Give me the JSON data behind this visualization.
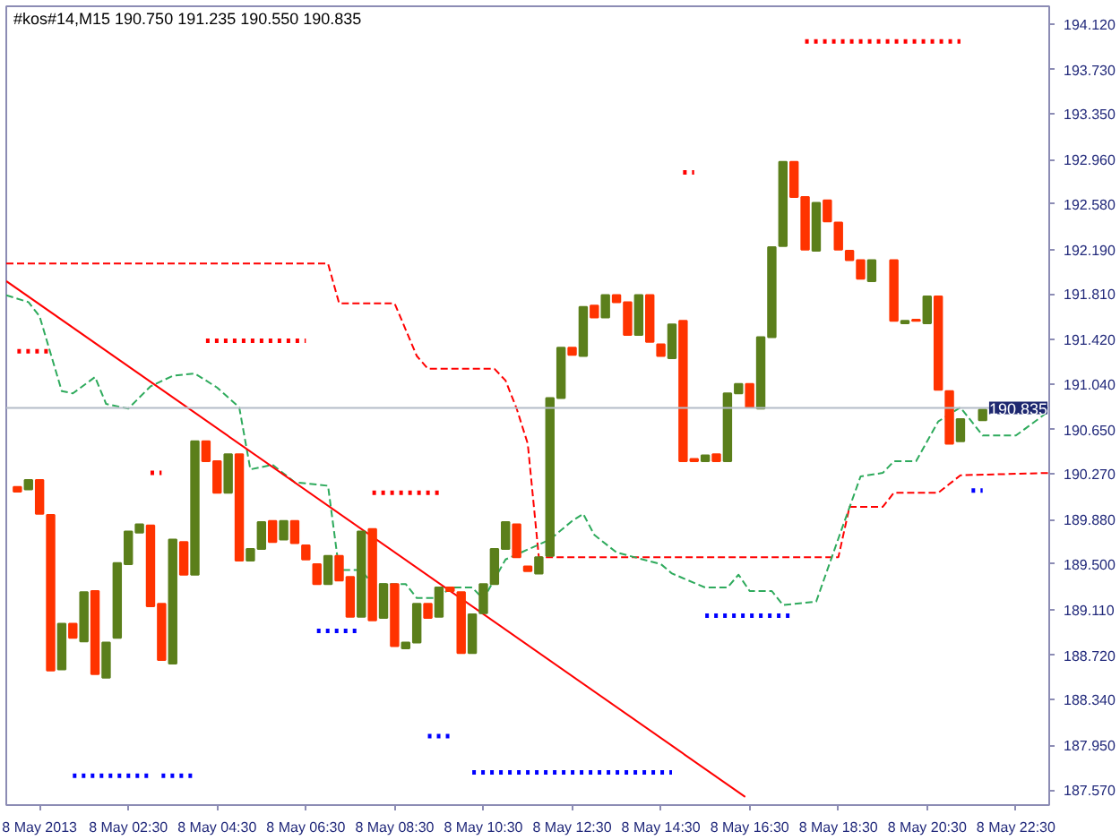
{
  "chart_data": {
    "type": "candlestick",
    "title": "#kos#14,M15  190.750 191.235 190.550 190.835",
    "x": [
      "2013-05-08T00:00",
      "2013-05-08T00:15",
      "2013-05-08T00:30",
      "2013-05-08T00:45",
      "2013-05-08T01:00",
      "2013-05-08T01:15",
      "2013-05-08T01:30",
      "2013-05-08T01:45",
      "2013-05-08T02:00",
      "2013-05-08T02:15",
      "2013-05-08T02:30",
      "2013-05-08T02:45",
      "2013-05-08T03:00",
      "2013-05-08T03:15",
      "2013-05-08T03:30",
      "2013-05-08T03:45",
      "2013-05-08T04:00",
      "2013-05-08T04:15",
      "2013-05-08T04:30",
      "2013-05-08T04:45",
      "2013-05-08T05:00",
      "2013-05-08T05:15",
      "2013-05-08T05:30",
      "2013-05-08T05:45",
      "2013-05-08T06:00",
      "2013-05-08T06:15",
      "2013-05-08T06:30",
      "2013-05-08T06:45",
      "2013-05-08T07:00",
      "2013-05-08T07:15",
      "2013-05-08T07:30",
      "2013-05-08T07:45",
      "2013-05-08T08:00",
      "2013-05-08T08:15",
      "2013-05-08T08:30",
      "2013-05-08T08:45",
      "2013-05-08T09:00",
      "2013-05-08T09:15",
      "2013-05-08T09:30",
      "2013-05-08T09:45",
      "2013-05-08T10:00",
      "2013-05-08T10:15",
      "2013-05-08T10:30",
      "2013-05-08T10:45",
      "2013-05-08T11:00",
      "2013-05-08T11:15",
      "2013-05-08T11:30",
      "2013-05-08T11:45",
      "2013-05-08T12:00",
      "2013-05-08T12:15",
      "2013-05-08T12:30",
      "2013-05-08T12:45",
      "2013-05-08T13:00",
      "2013-05-08T13:15",
      "2013-05-08T13:30",
      "2013-05-08T13:45",
      "2013-05-08T14:00",
      "2013-05-08T14:15",
      "2013-05-08T14:30",
      "2013-05-08T14:45",
      "2013-05-08T15:00",
      "2013-05-08T15:15",
      "2013-05-08T15:30",
      "2013-05-08T15:45",
      "2013-05-08T16:00",
      "2013-05-08T16:15",
      "2013-05-08T16:30",
      "2013-05-08T16:45",
      "2013-05-08T17:00",
      "2013-05-08T17:15",
      "2013-05-08T17:30",
      "2013-05-08T17:45",
      "2013-05-08T18:00",
      "2013-05-08T18:15",
      "2013-05-08T18:30",
      "2013-05-08T18:45",
      "2013-05-08T19:00",
      "2013-05-08T19:15",
      "2013-05-08T19:45",
      "2013-05-08T20:00",
      "2013-05-08T20:15",
      "2013-05-08T20:30",
      "2013-05-08T20:45",
      "2013-05-08T21:00",
      "2013-05-08T21:15",
      "2013-05-08T21:45"
    ],
    "ohlc": [
      [
        190.16,
        190.16,
        190.12,
        190.12
      ],
      [
        190.14,
        190.22,
        190.14,
        190.22
      ],
      [
        190.22,
        190.22,
        189.93,
        189.93
      ],
      [
        189.92,
        189.92,
        188.59,
        188.59
      ],
      [
        188.6,
        188.99,
        188.6,
        188.99
      ],
      [
        188.99,
        188.99,
        188.87,
        188.87
      ],
      [
        188.84,
        189.26,
        188.84,
        189.26
      ],
      [
        189.27,
        189.27,
        188.56,
        188.56
      ],
      [
        188.53,
        188.83,
        188.53,
        188.83
      ],
      [
        188.87,
        189.51,
        188.87,
        189.51
      ],
      [
        189.5,
        189.78,
        189.5,
        189.78
      ],
      [
        189.77,
        189.84,
        189.77,
        189.84
      ],
      [
        189.83,
        189.83,
        189.14,
        189.14
      ],
      [
        189.16,
        189.16,
        188.68,
        188.68
      ],
      [
        188.65,
        189.71,
        188.65,
        189.71
      ],
      [
        189.69,
        189.69,
        189.41,
        189.41
      ],
      [
        189.41,
        190.55,
        189.41,
        190.55
      ],
      [
        190.55,
        190.55,
        190.38,
        190.38
      ],
      [
        190.38,
        190.38,
        190.11,
        190.11
      ],
      [
        190.11,
        190.44,
        190.11,
        190.44
      ],
      [
        190.44,
        190.44,
        189.53,
        189.53
      ],
      [
        189.53,
        189.63,
        189.53,
        189.63
      ],
      [
        189.63,
        189.86,
        189.63,
        189.86
      ],
      [
        189.87,
        189.87,
        189.69,
        189.69
      ],
      [
        189.71,
        189.87,
        189.71,
        189.87
      ],
      [
        189.87,
        189.87,
        189.68,
        189.68
      ],
      [
        189.66,
        189.66,
        189.54,
        189.54
      ],
      [
        189.5,
        189.5,
        189.33,
        189.33
      ],
      [
        189.33,
        189.57,
        189.33,
        189.57
      ],
      [
        189.57,
        189.57,
        189.36,
        189.36
      ],
      [
        189.39,
        189.39,
        189.05,
        189.05
      ],
      [
        189.05,
        189.78,
        189.05,
        189.78
      ],
      [
        189.8,
        189.8,
        189.02,
        189.02
      ],
      [
        189.04,
        189.33,
        189.04,
        189.33
      ],
      [
        189.33,
        189.33,
        188.8,
        188.8
      ],
      [
        188.78,
        188.83,
        188.78,
        188.83
      ],
      [
        188.83,
        189.16,
        188.83,
        189.16
      ],
      [
        189.16,
        189.16,
        189.04,
        189.04
      ],
      [
        189.05,
        189.3,
        189.05,
        189.3
      ],
      [
        189.3,
        189.3,
        189.27,
        189.27
      ],
      [
        189.26,
        189.26,
        188.74,
        188.74
      ],
      [
        188.74,
        189.07,
        188.74,
        189.07
      ],
      [
        189.08,
        189.33,
        189.08,
        189.33
      ],
      [
        189.33,
        189.63,
        189.33,
        189.63
      ],
      [
        189.63,
        189.86,
        189.63,
        189.86
      ],
      [
        189.84,
        189.84,
        189.56,
        189.56
      ],
      [
        189.48,
        189.48,
        189.44,
        189.44
      ],
      [
        189.42,
        189.56,
        189.42,
        189.56
      ],
      [
        189.57,
        190.92,
        189.57,
        190.92
      ],
      [
        190.92,
        191.35,
        190.92,
        191.35
      ],
      [
        191.35,
        191.35,
        191.29,
        191.29
      ],
      [
        191.28,
        191.7,
        191.28,
        191.7
      ],
      [
        191.71,
        191.71,
        191.61,
        191.61
      ],
      [
        191.61,
        191.8,
        191.61,
        191.8
      ],
      [
        191.8,
        191.8,
        191.74,
        191.74
      ],
      [
        191.74,
        191.74,
        191.46,
        191.46
      ],
      [
        191.46,
        191.8,
        191.46,
        191.8
      ],
      [
        191.8,
        191.8,
        191.4,
        191.4
      ],
      [
        191.38,
        191.38,
        191.28,
        191.28
      ],
      [
        191.26,
        191.55,
        191.26,
        191.55
      ],
      [
        191.58,
        191.58,
        190.38,
        190.38
      ],
      [
        190.4,
        190.4,
        190.38,
        190.38
      ],
      [
        190.38,
        190.43,
        190.38,
        190.43
      ],
      [
        190.44,
        190.44,
        190.38,
        190.38
      ],
      [
        190.38,
        190.96,
        190.38,
        190.96
      ],
      [
        190.96,
        191.04,
        190.96,
        191.04
      ],
      [
        191.04,
        191.04,
        190.84,
        190.84
      ],
      [
        190.83,
        191.44,
        190.83,
        191.44
      ],
      [
        191.44,
        192.21,
        191.44,
        192.21
      ],
      [
        192.22,
        192.94,
        192.22,
        192.94
      ],
      [
        192.94,
        192.94,
        192.64,
        192.64
      ],
      [
        192.64,
        192.64,
        192.19,
        192.19
      ],
      [
        192.18,
        192.59,
        192.18,
        192.59
      ],
      [
        192.61,
        192.61,
        192.43,
        192.43
      ],
      [
        192.42,
        192.42,
        192.19,
        192.19
      ],
      [
        192.18,
        192.18,
        192.1,
        192.1
      ],
      [
        192.1,
        192.1,
        191.94,
        191.94
      ],
      [
        191.92,
        192.1,
        191.92,
        192.1
      ],
      [
        192.1,
        192.1,
        191.58,
        191.58
      ],
      [
        191.56,
        191.58,
        191.56,
        191.58
      ],
      [
        191.59,
        191.59,
        191.58,
        191.58
      ],
      [
        191.56,
        191.79,
        191.56,
        191.79
      ],
      [
        191.79,
        191.79,
        190.99,
        190.99
      ],
      [
        190.98,
        190.98,
        190.53,
        190.53
      ],
      [
        190.55,
        190.74,
        190.55,
        190.74
      ],
      [
        190.73,
        190.82,
        190.73,
        190.82
      ]
    ],
    "colors": [
      "#ff3300",
      "#5b7f1b",
      "#ff3300",
      "#ff3300",
      "#5b7f1b",
      "#ff3300",
      "#5b7f1b",
      "#ff3300",
      "#5b7f1b",
      "#5b7f1b",
      "#5b7f1b",
      "#5b7f1b",
      "#ff3300",
      "#ff3300",
      "#5b7f1b",
      "#ff3300",
      "#5b7f1b",
      "#ff3300",
      "#ff3300",
      "#5b7f1b",
      "#ff3300",
      "#5b7f1b",
      "#5b7f1b",
      "#ff3300",
      "#5b7f1b",
      "#ff3300",
      "#ff3300",
      "#ff3300",
      "#5b7f1b",
      "#ff3300",
      "#ff3300",
      "#5b7f1b",
      "#ff3300",
      "#5b7f1b",
      "#ff3300",
      "#5b7f1b",
      "#5b7f1b",
      "#ff3300",
      "#5b7f1b",
      "#ff3300",
      "#ff3300",
      "#5b7f1b",
      "#5b7f1b",
      "#5b7f1b",
      "#5b7f1b",
      "#ff3300",
      "#ff3300",
      "#5b7f1b",
      "#5b7f1b",
      "#5b7f1b",
      "#ff3300",
      "#5b7f1b",
      "#ff3300",
      "#5b7f1b",
      "#ff3300",
      "#ff3300",
      "#5b7f1b",
      "#ff3300",
      "#ff3300",
      "#5b7f1b",
      "#ff3300",
      "#ff3300",
      "#5b7f1b",
      "#ff3300",
      "#5b7f1b",
      "#5b7f1b",
      "#ff3300",
      "#5b7f1b",
      "#5b7f1b",
      "#5b7f1b",
      "#ff3300",
      "#ff3300",
      "#5b7f1b",
      "#ff3300",
      "#ff3300",
      "#ff3300",
      "#ff3300",
      "#5b7f1b",
      "#ff3300",
      "#5b7f1b",
      "#ff3300",
      "#5b7f1b",
      "#ff3300",
      "#ff3300",
      "#5b7f1b",
      "#5b7f1b"
    ],
    "series": [
      {
        "type": "line",
        "line_style": "dashed",
        "color": "#ff0000",
        "x": [
          "2013-05-07T23:45",
          "2013-05-08T07:00",
          "2013-05-08T07:15",
          "2013-05-08T08:30",
          "2013-05-08T09:00",
          "2013-05-08T09:15",
          "2013-05-08T10:45",
          "2013-05-08T11:00",
          "2013-05-08T11:15",
          "2013-05-08T11:30",
          "2013-05-08T11:45",
          "2013-05-08T18:30",
          "2013-05-08T18:45",
          "2013-05-08T19:30",
          "2013-05-08T19:45",
          "2013-05-08T20:45",
          "2013-05-08T21:15",
          "2013-05-08T23:15"
        ],
        "values": [
          192.07,
          192.07,
          191.73,
          191.73,
          191.28,
          191.17,
          191.17,
          191.07,
          190.83,
          190.53,
          189.56,
          189.56,
          189.99,
          189.99,
          190.11,
          190.11,
          190.26,
          190.28
        ]
      },
      {
        "type": "line",
        "line_style": "dashed",
        "color": "#2eaa5c",
        "x": [
          "2013-05-07T23:45",
          "2013-05-08T00:15",
          "2013-05-08T00:30",
          "2013-05-08T01:00",
          "2013-05-08T01:15",
          "2013-05-08T01:45",
          "2013-05-08T02:00",
          "2013-05-08T02:30",
          "2013-05-08T03:00",
          "2013-05-08T03:30",
          "2013-05-08T04:00",
          "2013-05-08T04:30",
          "2013-05-08T05:00",
          "2013-05-08T05:15",
          "2013-05-08T05:45",
          "2013-05-08T06:15",
          "2013-05-08T07:00",
          "2013-05-08T07:15",
          "2013-05-08T07:45",
          "2013-05-08T08:00",
          "2013-05-08T08:45",
          "2013-05-08T09:00",
          "2013-05-08T09:30",
          "2013-05-08T09:45",
          "2013-05-08T10:15",
          "2013-05-08T10:30",
          "2013-05-08T11:00",
          "2013-05-08T12:00",
          "2013-05-08T12:30",
          "2013-05-08T12:45",
          "2013-05-08T13:00",
          "2013-05-08T13:30",
          "2013-05-08T14:30",
          "2013-05-08T14:45",
          "2013-05-08T15:30",
          "2013-05-08T16:00",
          "2013-05-08T16:15",
          "2013-05-08T16:30",
          "2013-05-08T17:00",
          "2013-05-08T17:15",
          "2013-05-08T18:00",
          "2013-05-08T18:30",
          "2013-05-08T19:00",
          "2013-05-08T19:30",
          "2013-05-08T19:45",
          "2013-05-08T20:15",
          "2013-05-08T20:45",
          "2013-05-08T21:15",
          "2013-05-08T21:45",
          "2013-05-08T22:30",
          "2013-05-08T23:15"
        ],
        "values": [
          191.8,
          191.74,
          191.62,
          190.98,
          190.96,
          191.1,
          190.87,
          190.83,
          191.02,
          191.11,
          191.13,
          191.01,
          190.84,
          190.31,
          190.35,
          190.2,
          190.17,
          189.45,
          189.45,
          189.33,
          189.33,
          189.21,
          189.21,
          189.3,
          189.3,
          189.2,
          189.54,
          189.71,
          189.87,
          189.93,
          189.75,
          189.6,
          189.5,
          189.42,
          189.3,
          189.3,
          189.41,
          189.27,
          189.27,
          189.15,
          189.18,
          189.72,
          190.25,
          190.28,
          190.38,
          190.38,
          190.72,
          190.84,
          190.6,
          190.6,
          190.81
        ]
      },
      {
        "type": "line",
        "line_style": "solid",
        "color": "#ff0000",
        "x": [
          "2013-05-07T23:45",
          "2013-05-08T16:24"
        ],
        "values": [
          191.92,
          187.51
        ]
      },
      {
        "type": "line",
        "line_style": "dotted",
        "color": "#ff0000",
        "x": [
          "2013-05-08T17:45",
          "2013-05-08T21:15"
        ],
        "values": [
          193.97,
          193.97
        ]
      },
      {
        "type": "line",
        "line_style": "dotted",
        "color": "#ff0000",
        "x": [
          "2013-05-08T15:00",
          "2013-05-08T15:15"
        ],
        "values": [
          192.85,
          192.85
        ]
      },
      {
        "type": "line",
        "line_style": "dotted",
        "color": "#ff0000",
        "x": [
          "2013-05-08T00:00",
          "2013-05-08T00:45"
        ],
        "values": [
          191.32,
          191.32
        ]
      },
      {
        "type": "line",
        "line_style": "dotted",
        "color": "#ff0000",
        "x": [
          "2013-05-08T03:00",
          "2013-05-08T03:15"
        ],
        "values": [
          190.28,
          190.28
        ]
      },
      {
        "type": "line",
        "line_style": "dotted",
        "color": "#ff0000",
        "x": [
          "2013-05-08T04:15",
          "2013-05-08T06:30"
        ],
        "values": [
          191.41,
          191.41
        ]
      },
      {
        "type": "line",
        "line_style": "dotted",
        "color": "#ff0000",
        "x": [
          "2013-05-08T08:00",
          "2013-05-08T09:30"
        ],
        "values": [
          190.11,
          190.11
        ]
      },
      {
        "type": "line",
        "line_style": "dotted",
        "color": "#0000ff",
        "x": [
          "2013-05-08T06:45",
          "2013-05-08T07:45"
        ],
        "values": [
          188.93,
          188.93
        ]
      },
      {
        "type": "line",
        "line_style": "dotted",
        "color": "#0000ff",
        "x": [
          "2013-05-08T09:15",
          "2013-05-08T09:45"
        ],
        "values": [
          188.03,
          188.03
        ]
      },
      {
        "type": "line",
        "line_style": "dotted",
        "color": "#0000ff",
        "x": [
          "2013-05-08T10:15",
          "2013-05-08T14:45"
        ],
        "values": [
          187.72,
          187.72
        ]
      },
      {
        "type": "line",
        "line_style": "dotted",
        "color": "#0000ff",
        "x": [
          "2013-05-08T01:15",
          "2013-05-08T03:00"
        ],
        "values": [
          187.69,
          187.69
        ]
      },
      {
        "type": "line",
        "line_style": "dotted",
        "color": "#0000ff",
        "x": [
          "2013-05-08T03:15",
          "2013-05-08T04:00"
        ],
        "values": [
          187.69,
          187.69
        ]
      },
      {
        "type": "line",
        "line_style": "dotted",
        "color": "#0000ff",
        "x": [
          "2013-05-08T15:30",
          "2013-05-08T17:30"
        ],
        "values": [
          189.06,
          189.06
        ]
      },
      {
        "type": "line",
        "line_style": "dotted",
        "color": "#0000ff",
        "x": [
          "2013-05-08T21:30",
          "2013-05-08T21:45"
        ],
        "values": [
          190.13,
          190.13
        ]
      }
    ],
    "ref_lines": [
      {
        "axis": "y",
        "value": 190.835,
        "label": "190.835",
        "color": "#b4bcc8"
      }
    ],
    "xlim": [
      "2013-05-07T23:45",
      "2013-05-08T23:15"
    ],
    "ylim": [
      187.44,
      194.27
    ],
    "xticks": [
      {
        "value": "2013-05-08T00:30",
        "label": "8 May 2013"
      },
      {
        "value": "2013-05-08T02:30",
        "label": "8 May 02:30"
      },
      {
        "value": "2013-05-08T04:30",
        "label": "8 May 04:30"
      },
      {
        "value": "2013-05-08T06:30",
        "label": "8 May 06:30"
      },
      {
        "value": "2013-05-08T08:30",
        "label": "8 May 08:30"
      },
      {
        "value": "2013-05-08T10:30",
        "label": "8 May 10:30"
      },
      {
        "value": "2013-05-08T12:30",
        "label": "8 May 12:30"
      },
      {
        "value": "2013-05-08T14:30",
        "label": "8 May 14:30"
      },
      {
        "value": "2013-05-08T16:30",
        "label": "8 May 16:30"
      },
      {
        "value": "2013-05-08T18:30",
        "label": "8 May 18:30"
      },
      {
        "value": "2013-05-08T20:30",
        "label": "8 May 20:30"
      },
      {
        "value": "2013-05-08T22:30",
        "label": "8 May 22:30"
      }
    ],
    "yticks": [
      {
        "value": 194.12,
        "label": "194.120"
      },
      {
        "value": 193.73,
        "label": "193.730"
      },
      {
        "value": 193.35,
        "label": "193.350"
      },
      {
        "value": 192.96,
        "label": "192.960"
      },
      {
        "value": 192.58,
        "label": "192.580"
      },
      {
        "value": 192.19,
        "label": "192.190"
      },
      {
        "value": 191.81,
        "label": "191.810"
      },
      {
        "value": 191.42,
        "label": "191.420"
      },
      {
        "value": 191.04,
        "label": "191.040"
      },
      {
        "value": 190.65,
        "label": "190.650"
      },
      {
        "value": 190.27,
        "label": "190.270"
      },
      {
        "value": 189.88,
        "label": "189.880"
      },
      {
        "value": 189.5,
        "label": "189.500"
      },
      {
        "value": 189.11,
        "label": "189.110"
      },
      {
        "value": 188.72,
        "label": "188.720"
      },
      {
        "value": 188.34,
        "label": "188.340"
      },
      {
        "value": 187.95,
        "label": "187.950"
      },
      {
        "value": 187.57,
        "label": "187.570"
      }
    ]
  }
}
